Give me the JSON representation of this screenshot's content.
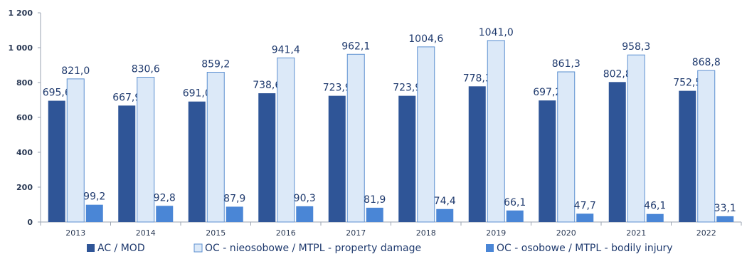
{
  "chart_data": {
    "type": "bar",
    "title": "",
    "xlabel": "",
    "ylabel": "",
    "ylim": [
      0,
      1200
    ],
    "yticks": [
      0,
      200,
      400,
      600,
      800,
      1000,
      1200
    ],
    "ytick_labels": [
      "0",
      "200",
      "400",
      "600",
      "800",
      "1 000",
      "1 200"
    ],
    "grid": false,
    "legend_position": "bottom",
    "categories": [
      "2013",
      "2014",
      "2015",
      "2016",
      "2017",
      "2018",
      "2019",
      "2020",
      "2021",
      "2022"
    ],
    "series": [
      {
        "name": "AC / MOD",
        "color": "#2f5597",
        "values": [
          695.6,
          667.9,
          691.0,
          738.6,
          723.9,
          723.9,
          778.3,
          697.2,
          802.8,
          752.5
        ],
        "labels": [
          "695,6",
          "667,9",
          "691,0",
          "738,6",
          "723,9",
          "723,9",
          "778,3",
          "697,2",
          "802,8",
          "752,5"
        ]
      },
      {
        "name": "OC - nieosobowe / MTPL - property damage",
        "color": "#dce9f8",
        "values": [
          821.0,
          830.6,
          859.2,
          941.4,
          962.1,
          1004.6,
          1041.0,
          861.3,
          958.3,
          868.8
        ],
        "labels": [
          "821,0",
          "830,6",
          "859,2",
          "941,4",
          "962,1",
          "1004,6",
          "1041,0",
          "861,3",
          "958,3",
          "868,8"
        ]
      },
      {
        "name": "OC - osobowe / MTPL - bodily injury",
        "color": "#4a86d6",
        "values": [
          99.2,
          92.8,
          87.9,
          90.3,
          81.9,
          74.4,
          66.1,
          47.7,
          46.1,
          33.1
        ],
        "labels": [
          "99,2",
          "92,8",
          "87,9",
          "90,3",
          "81,9",
          "74,4",
          "66,1",
          "47,7",
          "46,1",
          "33,1"
        ]
      }
    ]
  }
}
